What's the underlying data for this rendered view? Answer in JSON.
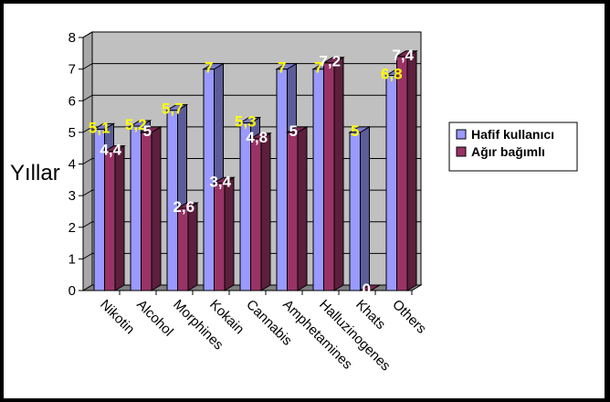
{
  "chart_data": {
    "type": "bar",
    "title": "",
    "xlabel": "",
    "ylabel": "Yıllar",
    "ylim": [
      0,
      8
    ],
    "yticks": [
      "0",
      "1",
      "2",
      "3",
      "4",
      "5",
      "6",
      "7",
      "8"
    ],
    "grid": true,
    "legend_position": "right",
    "categories": [
      "Nikotin",
      "Alcohol",
      "Morphines",
      "Kokain",
      "Cannabis",
      "Amphetamines",
      "Halluzinogenes",
      "Khats",
      "Others"
    ],
    "series": [
      {
        "name": "Hafif kullanıcı",
        "color": "#9999ff",
        "label_color": "#ffff00",
        "values": [
          5.1,
          5.2,
          5.7,
          7,
          5.3,
          7,
          7,
          5,
          6.8
        ],
        "labels": [
          "5,1",
          "5,2",
          "5,7",
          "7",
          "5,3",
          "7",
          "7",
          "5",
          "6,8"
        ]
      },
      {
        "name": "Ağır bağımlı",
        "color": "#993366",
        "label_color": "#ffffff",
        "values": [
          4.4,
          5,
          2.6,
          3.4,
          4.8,
          5,
          7.2,
          0,
          7.4
        ],
        "labels": [
          "4,4",
          "5",
          "2,6",
          "3,4",
          "4,8",
          "5",
          "7,2",
          "0",
          "7,4"
        ]
      }
    ]
  }
}
